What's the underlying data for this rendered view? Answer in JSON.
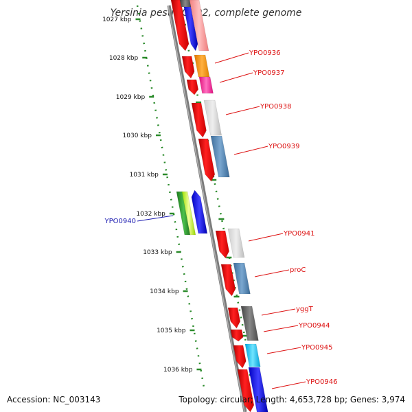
{
  "title": "Yersinia pestis CO92, complete genome",
  "footer": {
    "accession": "Accession: NC_003143",
    "summary": "Topology: circular; Length: 4,653,728 bp; Genes: 3,974"
  },
  "colors": {
    "backbone": "#808080",
    "ruler": "#2a8a2a",
    "label_red": "#dd1111",
    "label_blue": "#1a1ab0",
    "cds_red": "#ff0000"
  },
  "ticks": [
    {
      "label": "1027 kbp"
    },
    {
      "label": "1028 kbp"
    },
    {
      "label": "1029 kbp"
    },
    {
      "label": "1030 kbp"
    },
    {
      "label": "1031 kbp"
    },
    {
      "label": "1032 kbp"
    },
    {
      "label": "1033 kbp"
    },
    {
      "label": "1034 kbp"
    },
    {
      "label": "1035 kbp"
    },
    {
      "label": "1036 kbp"
    }
  ],
  "genes": [
    {
      "label": "YPO0936",
      "color": "#ff8c00",
      "side": "right"
    },
    {
      "label": "YPO0937",
      "color": "#ff1493",
      "side": "right"
    },
    {
      "label": "YPO0938",
      "color": "#bbbbbb",
      "side": "right"
    },
    {
      "label": "YPO0939",
      "color": "#4682b4",
      "side": "right"
    },
    {
      "label": "YPO0940",
      "color": "#2ca02c",
      "side": "left"
    },
    {
      "label": "YPO0941",
      "color": "#bbbbbb",
      "side": "right"
    },
    {
      "label": "proC",
      "color": "#4682b4",
      "side": "right"
    },
    {
      "label": "yggT",
      "color": "#555555",
      "side": "right"
    },
    {
      "label": "YPO0944",
      "color": "#ff0000",
      "side": "right"
    },
    {
      "label": "YPO0945",
      "color": "#00bfff",
      "side": "right"
    },
    {
      "label": "YPO0946",
      "color": "#0000ff",
      "side": "right"
    }
  ]
}
